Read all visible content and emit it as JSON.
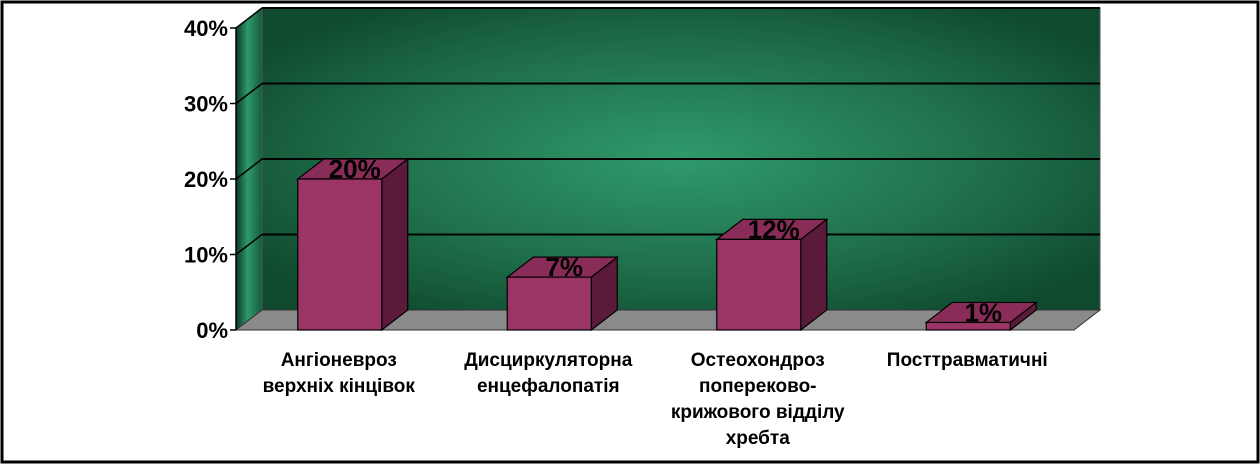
{
  "chart_data": {
    "type": "bar",
    "categories": [
      [
        "Ангіоневроз",
        "верхніх кінцівок"
      ],
      [
        "Дисциркуляторна",
        "енцефалопатія"
      ],
      [
        "Остеохондроз",
        "попереково-",
        "крижового відділу",
        "хребта"
      ],
      [
        "Посттравматичні"
      ]
    ],
    "values": [
      20,
      7,
      12,
      1
    ],
    "data_labels": [
      "20%",
      "7%",
      "12%",
      "1%"
    ],
    "y_ticks": [
      {
        "value": 0,
        "label": "0%"
      },
      {
        "value": 10,
        "label": "10%"
      },
      {
        "value": 20,
        "label": "20%"
      },
      {
        "value": 30,
        "label": "30%"
      },
      {
        "value": 40,
        "label": "40%"
      }
    ],
    "ylim": [
      0,
      40
    ],
    "grid": true,
    "legend": "none",
    "colors": {
      "bar_front": "#9b3566",
      "bar_top": "#8a2c58",
      "bar_side": "#5c1a3a",
      "wall_center": "#2f9a6c",
      "wall_edge": "#0f4a2e",
      "floor": "#8a8a8a",
      "grid_line": "#000000"
    }
  }
}
